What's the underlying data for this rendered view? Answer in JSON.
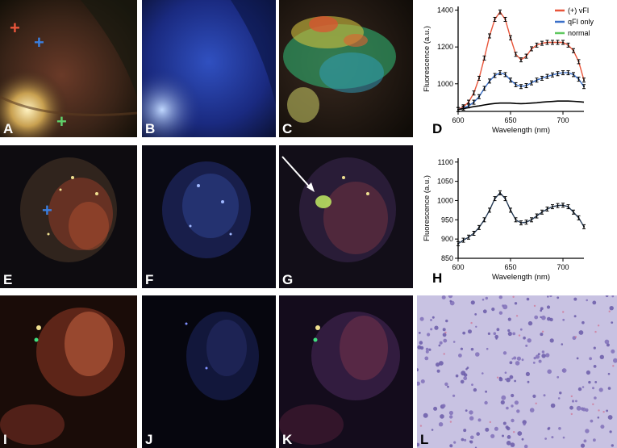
{
  "panels": {
    "A": {
      "label": "A"
    },
    "B": {
      "label": "B"
    },
    "C": {
      "label": "C"
    },
    "D": {
      "label": "D"
    },
    "E": {
      "label": "E"
    },
    "F": {
      "label": "F"
    },
    "G": {
      "label": "G"
    },
    "H": {
      "label": "H"
    },
    "I": {
      "label": "I"
    },
    "J": {
      "label": "J"
    },
    "K": {
      "label": "K"
    },
    "L": {
      "label": "L"
    }
  },
  "marker_colors": {
    "red": "#e8553a",
    "blue": "#3a7fe0",
    "green": "#5fd06a"
  },
  "chart_data": [
    {
      "type": "line",
      "panel": "D",
      "xlabel": "Wavelength (nm)",
      "ylabel": "Fluorescence (a.u.)",
      "xlim": [
        600,
        720
      ],
      "ylim": [
        850,
        1420
      ],
      "xticks": [
        600,
        650,
        700
      ],
      "yticks": [
        1000,
        1200,
        1400
      ],
      "legend_position": "top-right",
      "series": [
        {
          "name": "(+) vFI",
          "color": "#e8553a",
          "x": [
            600,
            605,
            610,
            615,
            620,
            625,
            630,
            635,
            640,
            645,
            650,
            655,
            660,
            665,
            670,
            675,
            680,
            685,
            690,
            695,
            700,
            705,
            710,
            715,
            720
          ],
          "y": [
            860,
            875,
            900,
            950,
            1030,
            1140,
            1260,
            1350,
            1390,
            1350,
            1250,
            1160,
            1130,
            1150,
            1190,
            1210,
            1220,
            1225,
            1225,
            1225,
            1225,
            1210,
            1180,
            1120,
            1020
          ]
        },
        {
          "name": "qFI only",
          "color": "#3a6fc8",
          "x": [
            600,
            605,
            610,
            615,
            620,
            625,
            630,
            635,
            640,
            645,
            650,
            655,
            660,
            665,
            670,
            675,
            680,
            685,
            690,
            695,
            700,
            705,
            710,
            715,
            720
          ],
          "y": [
            860,
            868,
            880,
            900,
            930,
            975,
            1015,
            1045,
            1060,
            1050,
            1020,
            995,
            985,
            990,
            1005,
            1020,
            1030,
            1040,
            1048,
            1055,
            1060,
            1060,
            1050,
            1025,
            985
          ]
        },
        {
          "name": "normal",
          "color": "#5fc85f",
          "x": [
            600,
            605,
            610,
            615,
            620,
            625,
            630,
            635,
            640,
            645,
            650,
            655,
            660,
            665,
            670,
            675,
            680,
            685,
            690,
            695,
            700,
            705,
            710,
            715,
            720
          ],
          "y": [
            860,
            865,
            870,
            876,
            880,
            885,
            890,
            893,
            895,
            895,
            895,
            893,
            892,
            893,
            895,
            897,
            900,
            902,
            904,
            906,
            906,
            906,
            905,
            903,
            900
          ]
        }
      ]
    },
    {
      "type": "line",
      "panel": "H",
      "xlabel": "Wavelength (nm)",
      "ylabel": "Fluorescence (a.u.)",
      "xlim": [
        600,
        720
      ],
      "ylim": [
        850,
        1110
      ],
      "xticks": [
        600,
        650,
        700
      ],
      "yticks": [
        850,
        900,
        950,
        1000,
        1050,
        1100
      ],
      "series": [
        {
          "name": "",
          "color": "#2a3f5a",
          "x": [
            600,
            605,
            610,
            615,
            620,
            625,
            630,
            635,
            640,
            645,
            650,
            655,
            660,
            665,
            670,
            675,
            680,
            685,
            690,
            695,
            700,
            705,
            710,
            715,
            720
          ],
          "y": [
            888,
            897,
            905,
            915,
            930,
            950,
            975,
            1005,
            1020,
            1005,
            975,
            950,
            942,
            944,
            950,
            960,
            970,
            978,
            984,
            987,
            988,
            984,
            970,
            955,
            932
          ]
        }
      ]
    }
  ]
}
